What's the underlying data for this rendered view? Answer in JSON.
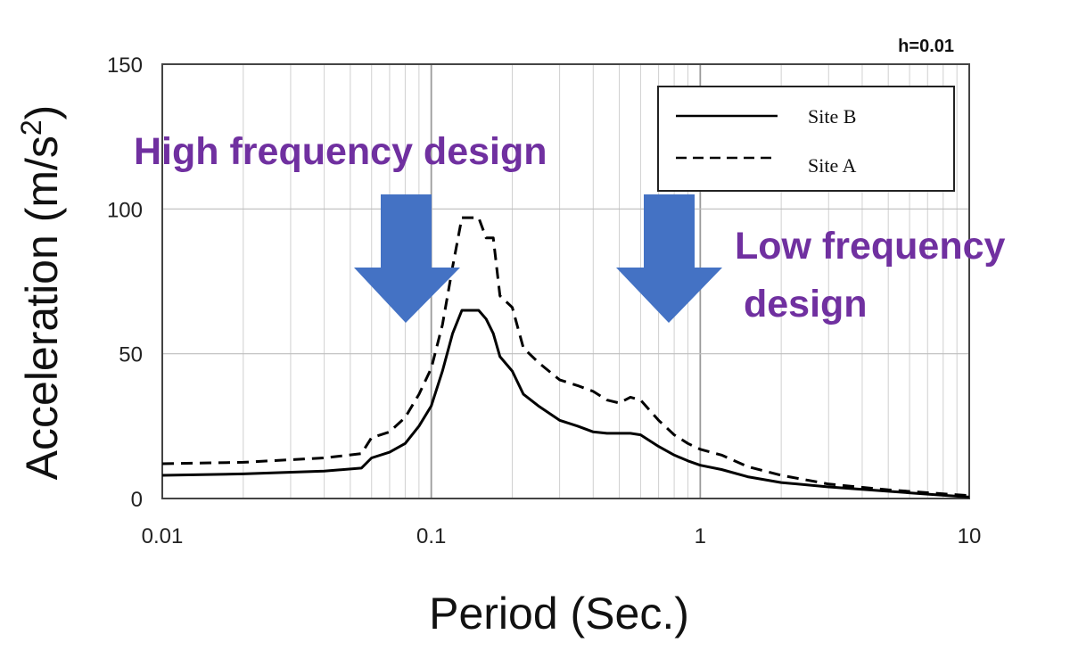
{
  "chart_data": {
    "type": "line",
    "title": "",
    "corner_label": "h=0.01",
    "xlabel": "Period (Sec.)",
    "ylabel": "Acceleration (m/s",
    "ylabel_sup": "2",
    "ylabel_end": ")",
    "x_scale": "log",
    "xlim": [
      0.01,
      10
    ],
    "ylim": [
      0,
      150
    ],
    "x_ticks": [
      "0.01",
      "0.1",
      "1",
      "10"
    ],
    "y_ticks": [
      "0",
      "50",
      "100",
      "150"
    ],
    "grid": true,
    "legend_position": "top-right",
    "series": [
      {
        "name": "Site B",
        "style": "solid",
        "color": "#000000",
        "points": [
          [
            0.01,
            8
          ],
          [
            0.02,
            8.5
          ],
          [
            0.04,
            9.5
          ],
          [
            0.055,
            10.5
          ],
          [
            0.06,
            14
          ],
          [
            0.07,
            16
          ],
          [
            0.08,
            19
          ],
          [
            0.09,
            25
          ],
          [
            0.1,
            32
          ],
          [
            0.11,
            44
          ],
          [
            0.12,
            57
          ],
          [
            0.13,
            65
          ],
          [
            0.15,
            65
          ],
          [
            0.16,
            62
          ],
          [
            0.17,
            57
          ],
          [
            0.18,
            49
          ],
          [
            0.2,
            44
          ],
          [
            0.22,
            36
          ],
          [
            0.25,
            32
          ],
          [
            0.3,
            27
          ],
          [
            0.35,
            25
          ],
          [
            0.4,
            23
          ],
          [
            0.45,
            22.5
          ],
          [
            0.55,
            22.5
          ],
          [
            0.6,
            22
          ],
          [
            0.7,
            18
          ],
          [
            0.8,
            15
          ],
          [
            0.9,
            13
          ],
          [
            1.0,
            11.5
          ],
          [
            1.2,
            10
          ],
          [
            1.5,
            7.5
          ],
          [
            2.0,
            5.5
          ],
          [
            3.0,
            4
          ],
          [
            5.0,
            2.5
          ],
          [
            7.0,
            1.5
          ],
          [
            10.0,
            0.5
          ]
        ]
      },
      {
        "name": "Site A",
        "style": "dashed",
        "color": "#000000",
        "points": [
          [
            0.01,
            12
          ],
          [
            0.02,
            12.5
          ],
          [
            0.04,
            14
          ],
          [
            0.055,
            15.5
          ],
          [
            0.06,
            21
          ],
          [
            0.07,
            23
          ],
          [
            0.08,
            28
          ],
          [
            0.09,
            36
          ],
          [
            0.1,
            45
          ],
          [
            0.11,
            60
          ],
          [
            0.12,
            80
          ],
          [
            0.13,
            97
          ],
          [
            0.15,
            97
          ],
          [
            0.16,
            90
          ],
          [
            0.17,
            90
          ],
          [
            0.18,
            70
          ],
          [
            0.2,
            66
          ],
          [
            0.22,
            52
          ],
          [
            0.25,
            47
          ],
          [
            0.3,
            41
          ],
          [
            0.35,
            39
          ],
          [
            0.4,
            37
          ],
          [
            0.45,
            34
          ],
          [
            0.5,
            33
          ],
          [
            0.55,
            35
          ],
          [
            0.6,
            34
          ],
          [
            0.7,
            27
          ],
          [
            0.8,
            22
          ],
          [
            0.9,
            19
          ],
          [
            1.0,
            17
          ],
          [
            1.2,
            15
          ],
          [
            1.5,
            11
          ],
          [
            2.0,
            8
          ],
          [
            3.0,
            5
          ],
          [
            5.0,
            3
          ],
          [
            7.0,
            2
          ],
          [
            10.0,
            1
          ]
        ]
      }
    ],
    "annotations": {
      "high": "High frequency design",
      "low_line1": "Low frequency",
      "low_line2": "design"
    },
    "arrow_color": "#4472c4",
    "annotation_color": "#7030a0"
  }
}
